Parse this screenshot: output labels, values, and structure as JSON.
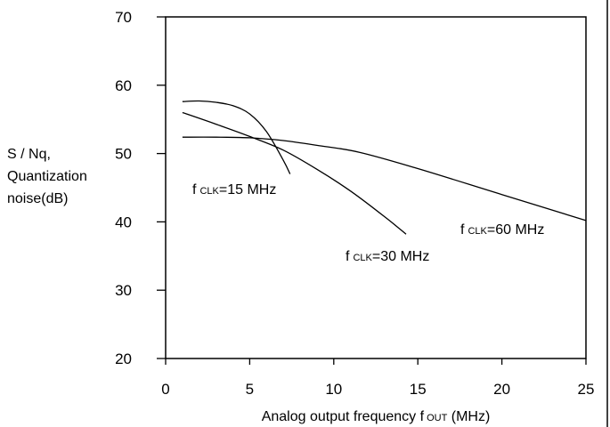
{
  "chart_data": {
    "type": "line",
    "xlabel": {
      "main": "Analog output frequency f",
      "sub": "OUT",
      "unit": " (MHz)"
    },
    "ylabel": [
      "S / Nq,",
      "Quantization",
      "noise(dB)"
    ],
    "xlim": [
      0,
      25
    ],
    "ylim": [
      20,
      70
    ],
    "xticks": [
      0,
      5,
      10,
      15,
      20,
      25
    ],
    "yticks": [
      20,
      30,
      40,
      50,
      60,
      70
    ],
    "grid": false,
    "series": [
      {
        "name": {
          "main": "f",
          "sub": "CLK",
          "rest": "=15 MHz"
        },
        "x": [
          1,
          2,
          3,
          4,
          5,
          6,
          7,
          7.4
        ],
        "y": [
          57.6,
          57.7,
          57.5,
          57.0,
          55.8,
          53.2,
          49.0,
          47.0
        ]
      },
      {
        "name": {
          "main": "f",
          "sub": "CLK",
          "rest": "=30 MHz"
        },
        "x": [
          1,
          3,
          5,
          7,
          9,
          11,
          13,
          14.3
        ],
        "y": [
          56.0,
          54.3,
          52.5,
          50.5,
          47.7,
          44.5,
          40.8,
          38.2
        ]
      },
      {
        "name": {
          "main": "f",
          "sub": "CLK",
          "rest": "=60 MHz"
        },
        "x": [
          1,
          3,
          5,
          7,
          9,
          11.5,
          15,
          20,
          25
        ],
        "y": [
          52.4,
          52.4,
          52.3,
          51.9,
          51.2,
          50.2,
          47.8,
          44.0,
          40.2
        ]
      }
    ]
  }
}
